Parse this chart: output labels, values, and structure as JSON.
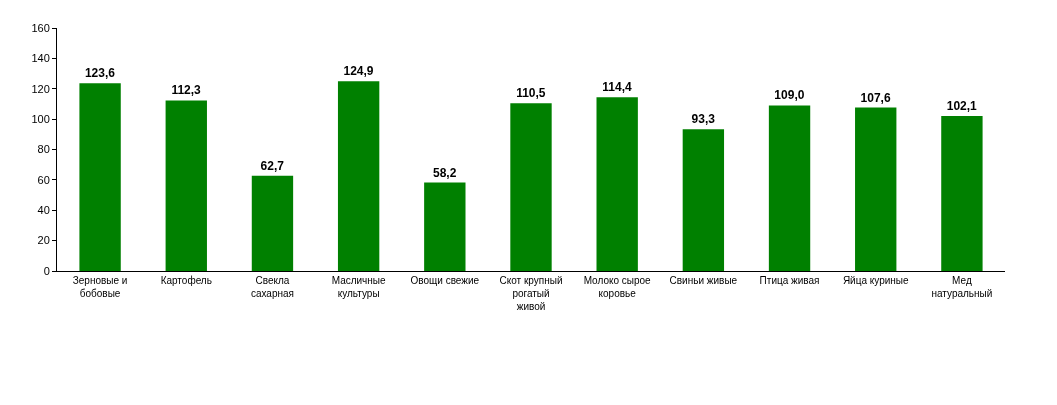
{
  "chart_data": {
    "type": "bar",
    "categories": [
      "Зерновые и\nбобовые",
      "Картофель",
      "Свекла\nсахарная",
      "Масличные\nкультуры",
      "Овощи свежие",
      "Скот крупный\nрогатый\nживой",
      "Молоко сырое\nкоровье",
      "Свиньи живые",
      "Птица живая",
      "Яйца куриные",
      "Мед\nнатуральный"
    ],
    "values": [
      123.6,
      112.3,
      62.7,
      124.9,
      58.2,
      110.5,
      114.4,
      93.3,
      109.0,
      107.6,
      102.1
    ],
    "value_labels": [
      "123,6",
      "112,3",
      "62,7",
      "124,9",
      "58,2",
      "110,5",
      "114,4",
      "93,3",
      "109,0",
      "107,6",
      "102,1"
    ],
    "color": "#008000",
    "ylim": [
      0,
      160
    ],
    "yticks": [
      0,
      20,
      40,
      60,
      80,
      100,
      120,
      140,
      160
    ]
  }
}
